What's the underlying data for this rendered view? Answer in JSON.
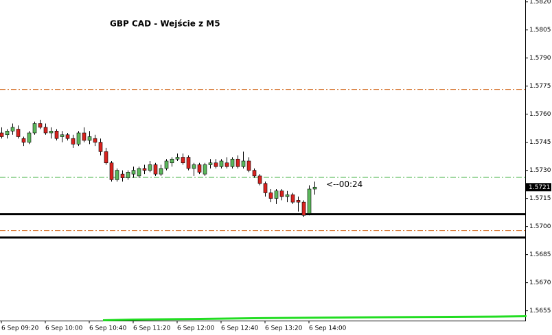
{
  "chart_data": {
    "type": "candlestick",
    "title": "GBP CAD - Wejście z M5",
    "categories": [
      "6 Sep 09:20",
      null,
      null,
      null,
      null,
      null,
      null,
      null,
      "6 Sep 10:00",
      null,
      null,
      null,
      null,
      null,
      null,
      null,
      "6 Sep 10:40",
      null,
      null,
      null,
      null,
      null,
      null,
      null,
      "6 Sep 11:20",
      null,
      null,
      null,
      null,
      null,
      null,
      null,
      "6 Sep 12:00",
      null,
      null,
      null,
      null,
      null,
      null,
      null,
      "6 Sep 12:40",
      null,
      null,
      null,
      null,
      null,
      null,
      null,
      "6 Sep 13:20",
      null,
      null,
      null,
      null,
      null,
      null,
      null,
      "6 Sep 14:00",
      null
    ],
    "open": [
      1.575,
      1.5749,
      1.5751,
      1.5752,
      1.5747,
      1.5745,
      1.575,
      1.5755,
      1.5753,
      1.575,
      1.5751,
      1.5748,
      1.5749,
      1.5747,
      1.5744,
      1.575,
      1.5746,
      1.5747,
      1.5745,
      1.574,
      1.5734,
      1.5725,
      1.5728,
      1.5726,
      1.5728,
      1.5727,
      1.5731,
      1.573,
      1.5733,
      1.5728,
      1.5731,
      1.5734,
      1.5736,
      1.5737,
      1.5737,
      1.5731,
      1.5733,
      1.5728,
      1.5733,
      1.5734,
      1.5732,
      1.5734,
      1.5732,
      1.5736,
      1.5732,
      1.5735,
      1.573,
      1.5727,
      1.5723,
      1.5718,
      1.5715,
      1.5719,
      1.5716,
      1.5717,
      1.5714,
      1.5713,
      1.5707,
      1.572
    ],
    "high": [
      1.5753,
      1.5752,
      1.5755,
      1.5754,
      1.5748,
      1.5751,
      1.5756,
      1.5757,
      1.5755,
      1.5753,
      1.5752,
      1.5751,
      1.575,
      1.5749,
      1.5751,
      1.5753,
      1.5751,
      1.5749,
      1.5747,
      1.5742,
      1.5735,
      1.5731,
      1.573,
      1.573,
      1.5732,
      1.5732,
      1.5733,
      1.5735,
      1.5734,
      1.5733,
      1.5736,
      1.5737,
      1.5739,
      1.5739,
      1.5738,
      1.5734,
      1.5734,
      1.5734,
      1.5736,
      1.5736,
      1.5736,
      1.5737,
      1.5737,
      1.5738,
      1.574,
      1.5737,
      1.5731,
      1.5728,
      1.5724,
      1.572,
      1.572,
      1.572,
      1.5719,
      1.5718,
      1.5716,
      1.5714,
      1.5722,
      1.5724
    ],
    "low": [
      1.5747,
      1.5747,
      1.5749,
      1.5747,
      1.5743,
      1.5744,
      1.5749,
      1.5752,
      1.5749,
      1.5747,
      1.5746,
      1.5745,
      1.5746,
      1.5742,
      1.5743,
      1.5745,
      1.5744,
      1.5743,
      1.5738,
      1.5733,
      1.5724,
      1.5724,
      1.5724,
      1.5725,
      1.5726,
      1.5726,
      1.5728,
      1.5729,
      1.5727,
      1.5727,
      1.573,
      1.5732,
      1.5735,
      1.5733,
      1.573,
      1.5727,
      1.5728,
      1.5727,
      1.5731,
      1.5731,
      1.5731,
      1.5731,
      1.5731,
      1.5731,
      1.5731,
      1.5729,
      1.5726,
      1.5722,
      1.5716,
      1.5713,
      1.5712,
      1.5714,
      1.5713,
      1.5712,
      1.5708,
      1.5705,
      1.5706,
      1.5717
    ],
    "close": [
      1.5748,
      1.5751,
      1.5753,
      1.5748,
      1.5745,
      1.575,
      1.5755,
      1.5753,
      1.575,
      1.5751,
      1.5747,
      1.5749,
      1.5747,
      1.5744,
      1.575,
      1.5746,
      1.5748,
      1.5745,
      1.574,
      1.5734,
      1.5725,
      1.573,
      1.5726,
      1.5729,
      1.573,
      1.5731,
      1.573,
      1.5733,
      1.5728,
      1.5731,
      1.5735,
      1.5736,
      1.5737,
      1.5734,
      1.5731,
      1.5733,
      1.5729,
      1.5733,
      1.5734,
      1.5732,
      1.5735,
      1.5732,
      1.5736,
      1.5732,
      1.5735,
      1.573,
      1.5727,
      1.5723,
      1.5718,
      1.5715,
      1.5719,
      1.5716,
      1.5717,
      1.5713,
      1.5713,
      1.5706,
      1.572,
      1.5721
    ],
    "up_color": "#5cb85c",
    "down_color": "#d9231f",
    "ylim": [
      1.5649,
      1.5821
    ],
    "yticks": [
      {
        "value": 1.582,
        "label": "1.5820"
      },
      1.5805,
      {
        "value": 1.579,
        "label": "1.5790"
      },
      1.5775,
      {
        "value": 1.576,
        "label": "1.5760"
      },
      1.5745,
      {
        "value": 1.573,
        "label": "1.5730"
      },
      1.5715,
      {
        "value": 1.57,
        "label": "1.5700"
      },
      1.5685,
      {
        "value": 1.567,
        "label": "1.5670"
      },
      1.5655
    ],
    "levels": [
      {
        "value": 1.57732,
        "color": "#d2691e",
        "style": "dashdot"
      },
      {
        "value": 1.57263,
        "color": "#2ea82e",
        "style": "dashdot"
      },
      {
        "value": 1.57066,
        "color": "#000000",
        "style": "solid"
      },
      {
        "value": 1.56978,
        "color": "#d2691e",
        "style": "dashdot"
      },
      {
        "value": 1.56941,
        "color": "#000000",
        "style": "solid"
      }
    ],
    "indicator": {
      "color": "#22dd22",
      "x": [
        18.5,
        24,
        35,
        46,
        57,
        68,
        79,
        90,
        95.6
      ],
      "values": [
        1.56499,
        1.56503,
        1.56506,
        1.5651,
        1.56513,
        1.56515,
        1.56517,
        1.56519,
        1.56521
      ]
    },
    "last_price": 1.5721,
    "annotation": "<--00:24"
  }
}
